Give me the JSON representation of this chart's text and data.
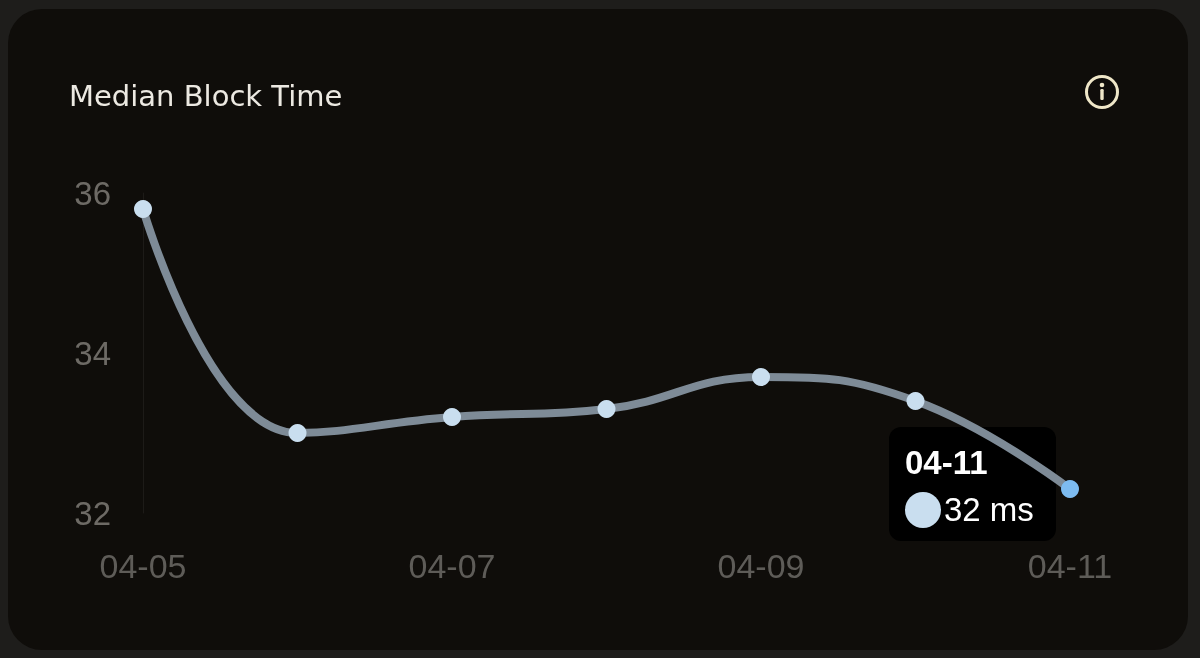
{
  "chart_data": {
    "type": "line",
    "title": "Median Block Time",
    "categories": [
      "04-05",
      null,
      "04-07",
      null,
      "04-09",
      null,
      "04-11"
    ],
    "series": [
      {
        "color": "#7e8b97",
        "colors": [
          "#c9deef",
          "#c9deef",
          "#c9deef",
          "#c9deef",
          "#c9deef",
          "#c9deef",
          "#7dbbf0"
        ],
        "values": [
          35.8,
          33.0,
          33.2,
          33.3,
          33.7,
          33.4,
          32.3
        ]
      }
    ],
    "ylim": [
      32,
      36
    ],
    "yticks": [
      32,
      34,
      36
    ],
    "marker": "circle",
    "annotations": [
      {
        "text": "04-11",
        "x": "04-11",
        "y": 32.3
      },
      {
        "text": "32 ms",
        "x": "04-11",
        "y": 32.3
      }
    ]
  }
}
